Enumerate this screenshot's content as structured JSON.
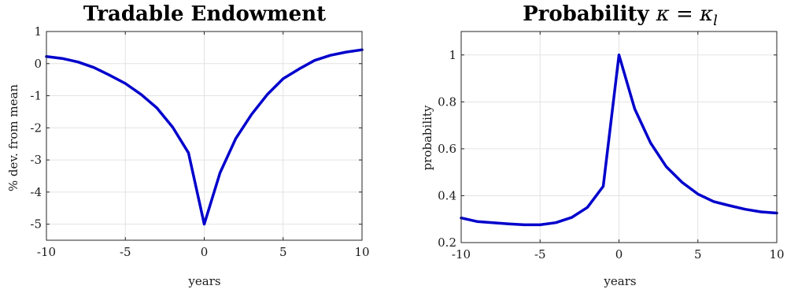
{
  "chart_data": [
    {
      "type": "line",
      "title": "Tradable Endowment",
      "xlabel": "years",
      "ylabel": "% dev. from mean",
      "xlim": [
        -10,
        10
      ],
      "ylim": [
        -5.5,
        1
      ],
      "xticks": [
        "-10",
        "-5",
        "0",
        "5",
        "10"
      ],
      "yticks": [
        "1",
        "0",
        "-1",
        "-2",
        "-3",
        "-4",
        "-5"
      ],
      "grid": true,
      "color": "#0000cc",
      "series": [
        {
          "x": [
            -10,
            -9,
            -8,
            -7,
            -6,
            -5,
            -4,
            -3,
            -2,
            -1,
            0,
            1,
            2,
            3,
            4,
            5,
            6,
            7,
            8,
            9,
            10
          ],
          "values": [
            0.22,
            0.16,
            0.05,
            -0.12,
            -0.36,
            -0.62,
            -0.96,
            -1.38,
            -1.98,
            -2.78,
            -5.0,
            -3.4,
            -2.33,
            -1.58,
            -0.96,
            -0.47,
            -0.17,
            0.1,
            0.26,
            0.36,
            0.43
          ]
        }
      ]
    },
    {
      "type": "line",
      "title": "Probability ",
      "title_math": "κ = κ",
      "title_math_sub": "l",
      "xlabel": "years",
      "ylabel": "probability",
      "xlim": [
        -10,
        10
      ],
      "ylim": [
        0.2,
        1.1
      ],
      "xticks": [
        "-10",
        "-5",
        "0",
        "5",
        "10"
      ],
      "yticks": [
        "1",
        "0.8",
        "0.6",
        "0.4",
        "0.2"
      ],
      "grid": true,
      "color": "#0000cc",
      "series": [
        {
          "x": [
            -10,
            -9,
            -8,
            -7,
            -6,
            -5,
            -4,
            -3,
            -2,
            -1,
            0,
            1,
            2,
            3,
            4,
            5,
            6,
            7,
            8,
            9,
            10
          ],
          "values": [
            0.305,
            0.29,
            0.285,
            0.28,
            0.276,
            0.276,
            0.285,
            0.307,
            0.35,
            0.44,
            1.0,
            0.77,
            0.625,
            0.523,
            0.457,
            0.407,
            0.375,
            0.358,
            0.342,
            0.331,
            0.326
          ]
        }
      ]
    }
  ]
}
